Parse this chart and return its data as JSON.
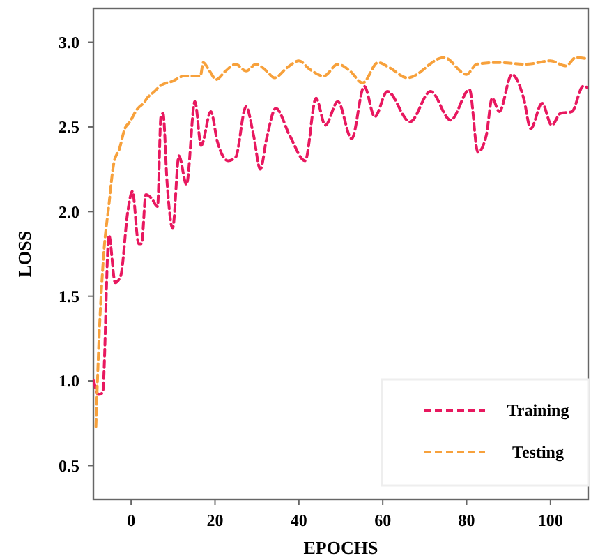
{
  "chart_data": {
    "type": "line",
    "xlabel": "EPOCHS",
    "ylabel": "LOSS",
    "xlim": [
      -9,
      109
    ],
    "ylim": [
      0.3,
      3.2
    ],
    "xticks": [
      0,
      20,
      40,
      60,
      80,
      100
    ],
    "yticks": [
      0.5,
      {
        "value": 1,
        "label": "1.0"
      },
      1.5,
      {
        "value": 2,
        "label": "2.0"
      },
      2.5,
      {
        "value": 3,
        "label": "3.0"
      }
    ],
    "legend": "bottom right",
    "line_style": "dashed",
    "marker": "none",
    "grid": false,
    "series": [
      {
        "name": "Training",
        "color": "#e8185f",
        "x": [
          -8.9,
          -7.8,
          -6.8,
          -5.3,
          -3.8,
          -2.5,
          -0.8,
          0.3,
          1.8,
          2.5,
          3.5,
          4.8,
          6.3,
          7.1,
          7.6,
          8.6,
          9.9,
          11.4,
          13.2,
          15.2,
          16.7,
          19.0,
          20.6,
          23.1,
          24.9,
          27.4,
          29.2,
          30.8,
          32.3,
          34.5,
          37.8,
          41.5,
          44.1,
          46.3,
          49.3,
          52.6,
          55.6,
          58.1,
          61.1,
          66.5,
          71.4,
          76.2,
          80.7,
          82.7,
          84.7,
          86.1,
          87.8,
          90.8,
          93.6,
          95.3,
          98.0,
          100.3,
          102.4,
          105.1,
          107.8,
          109
        ],
        "values": [
          1.0,
          0.92,
          0.93,
          1.86,
          1.58,
          1.62,
          2.0,
          2.12,
          1.81,
          1.81,
          2.1,
          2.08,
          2.03,
          2.56,
          2.58,
          2.16,
          1.9,
          2.33,
          2.16,
          2.65,
          2.39,
          2.59,
          2.41,
          2.3,
          2.32,
          2.62,
          2.45,
          2.25,
          2.43,
          2.61,
          2.45,
          2.3,
          2.67,
          2.51,
          2.65,
          2.43,
          2.74,
          2.56,
          2.71,
          2.53,
          2.71,
          2.54,
          2.72,
          2.35,
          2.45,
          2.67,
          2.59,
          2.81,
          2.67,
          2.49,
          2.64,
          2.51,
          2.58,
          2.59,
          2.74,
          2.73
        ]
      },
      {
        "name": "Testing",
        "color": "#f7a13c",
        "x": [
          -8.4,
          -7.6,
          -6.6,
          -5.3,
          -4.1,
          -2.8,
          -1.5,
          -0.3,
          1.3,
          2.0,
          3.0,
          3.8,
          5.6,
          6.8,
          8.4,
          9.9,
          11.4,
          12.4,
          13.9,
          16.5,
          17.2,
          18.7,
          20.3,
          22.5,
          24.9,
          27.4,
          29.8,
          32.3,
          34.2,
          37.2,
          40.0,
          42.6,
          45.9,
          49.3,
          52.2,
          55.2,
          58.9,
          61.6,
          65.9,
          74.6,
          80.0,
          82.4,
          87.5,
          94.2,
          100,
          103.7,
          106.1,
          109
        ],
        "values": [
          0.73,
          1.28,
          1.73,
          2.04,
          2.29,
          2.37,
          2.49,
          2.53,
          2.6,
          2.62,
          2.64,
          2.67,
          2.71,
          2.74,
          2.76,
          2.77,
          2.79,
          2.8,
          2.8,
          2.8,
          2.88,
          2.83,
          2.78,
          2.83,
          2.87,
          2.83,
          2.87,
          2.83,
          2.79,
          2.85,
          2.89,
          2.84,
          2.8,
          2.87,
          2.83,
          2.76,
          2.88,
          2.85,
          2.79,
          2.91,
          2.81,
          2.87,
          2.88,
          2.87,
          2.89,
          2.86,
          2.91,
          2.9
        ]
      }
    ]
  }
}
